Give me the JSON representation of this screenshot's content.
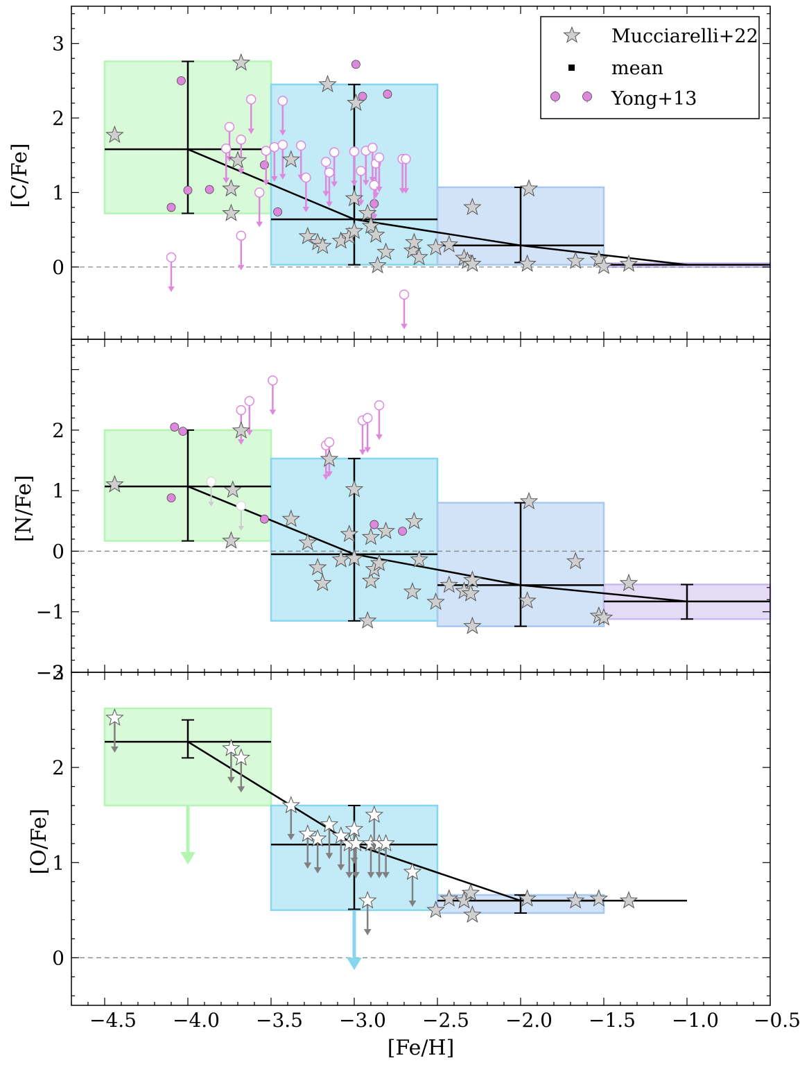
{
  "chart_data": {
    "type": "scatter",
    "xlabel": "[Fe/H]",
    "xlim": [
      -4.7,
      -0.5
    ],
    "xticks": [
      "−4.5",
      "−4.0",
      "−3.5",
      "−3.0",
      "−2.5",
      "−2.0",
      "−1.5",
      "−1.0",
      "−0.5"
    ],
    "xtick_values": [
      -4.5,
      -4.0,
      -3.5,
      -3.0,
      -2.5,
      -2.0,
      -1.5,
      -1.0,
      -0.5
    ],
    "legend": {
      "position": "top-right of top panel",
      "entries": [
        "Mucciarelli+22",
        "mean",
        "Yong+13"
      ]
    },
    "colors": {
      "bin1": "#b4f5b4",
      "bin2": "#87d6f0",
      "bin3": "#a8c8f0",
      "bin4": "#c9b8f0",
      "yong": "#dd88dd",
      "star_fill": "#cfcfcf",
      "star_stroke": "#555555",
      "arrow": "#808080"
    },
    "panels": [
      {
        "id": "C",
        "ylabel": "[C/Fe]",
        "ylim": [
          -0.97,
          3.5
        ],
        "yticks": [
          0,
          1,
          2,
          3
        ],
        "ytick_labels": [
          "0",
          "1",
          "2",
          "3"
        ],
        "bins": [
          {
            "x0": -4.5,
            "x1": -3.5,
            "y0": 0.72,
            "y1": 2.76,
            "color": "bin1"
          },
          {
            "x0": -3.5,
            "x1": -2.5,
            "y0": 0.03,
            "y1": 2.45,
            "color": "bin2"
          },
          {
            "x0": -2.5,
            "x1": -1.5,
            "y0": 0.03,
            "y1": 1.07,
            "color": "bin3"
          },
          {
            "x0": -1.5,
            "x1": -0.5,
            "y0": 0.0,
            "y1": 0.05,
            "color": "bin4"
          }
        ],
        "means": [
          {
            "x": -4.0,
            "y": 1.58,
            "xerr": 0.5,
            "ylo": 0.72,
            "yhi": 2.76
          },
          {
            "x": -3.0,
            "y": 0.64,
            "xerr": 0.5,
            "ylo": 0.03,
            "yhi": 2.45
          },
          {
            "x": -2.0,
            "y": 0.29,
            "xerr": 0.5,
            "ylo": 0.06,
            "yhi": 1.07
          },
          {
            "x": -1.0,
            "y": 0.03,
            "xerr": 0.5,
            "ylo": 0.03,
            "yhi": 0.03
          }
        ],
        "mucciarelli": [
          [
            -4.44,
            1.77,
            0
          ],
          [
            -3.68,
            2.74,
            0
          ],
          [
            -3.16,
            2.45,
            0
          ],
          [
            -2.99,
            2.2,
            0
          ],
          [
            -3.7,
            1.43,
            0
          ],
          [
            -3.74,
            1.05,
            0
          ],
          [
            -3.74,
            0.72,
            0
          ],
          [
            -3.38,
            1.44,
            0
          ],
          [
            -3.0,
            0.92,
            0
          ],
          [
            -3.28,
            0.41,
            0
          ],
          [
            -3.22,
            0.33,
            0
          ],
          [
            -3.19,
            0.28,
            0
          ],
          [
            -3.08,
            0.35,
            0
          ],
          [
            -3.03,
            0.41,
            0
          ],
          [
            -3.0,
            0.48,
            0
          ],
          [
            -2.92,
            0.72,
            0
          ],
          [
            -2.9,
            0.55,
            0
          ],
          [
            -2.87,
            0.43,
            0
          ],
          [
            -2.86,
            0.02,
            0
          ],
          [
            -2.81,
            0.2,
            0
          ],
          [
            -2.65,
            0.22,
            0
          ],
          [
            -2.64,
            0.33,
            0
          ],
          [
            -2.61,
            0.13,
            0
          ],
          [
            -2.51,
            0.26,
            0
          ],
          [
            -2.43,
            0.3,
            0
          ],
          [
            -2.34,
            0.12,
            0
          ],
          [
            -2.32,
            0.08,
            0
          ],
          [
            -2.29,
            0.04,
            0
          ],
          [
            -2.29,
            0.8,
            0
          ],
          [
            -1.95,
            1.05,
            0
          ],
          [
            -1.96,
            0.04,
            0
          ],
          [
            -1.67,
            0.08,
            0
          ],
          [
            -1.53,
            0.1,
            0
          ],
          [
            -1.5,
            0.01,
            0
          ],
          [
            -1.35,
            0.04,
            0
          ]
        ],
        "yong_detect": [
          [
            -4.04,
            2.5
          ],
          [
            -2.99,
            2.72
          ],
          [
            -2.95,
            2.29
          ],
          [
            -2.8,
            2.32
          ],
          [
            -3.54,
            1.37
          ],
          [
            -4.1,
            0.8
          ],
          [
            -4.0,
            1.03
          ],
          [
            -3.87,
            1.04
          ],
          [
            -3.46,
            0.74
          ],
          [
            -2.88,
            0.85
          ]
        ],
        "yong_upper": [
          [
            -4.1,
            0.13
          ],
          [
            -3.68,
            0.42
          ],
          [
            -3.75,
            1.88
          ],
          [
            -3.62,
            2.25
          ],
          [
            -3.43,
            2.23
          ],
          [
            -3.68,
            1.71
          ],
          [
            -3.77,
            1.59
          ],
          [
            -3.53,
            1.56
          ],
          [
            -3.57,
            1.0
          ],
          [
            -3.48,
            1.61
          ],
          [
            -3.43,
            1.64
          ],
          [
            -3.32,
            1.63
          ],
          [
            -3.29,
            1.2
          ],
          [
            -3.17,
            1.41
          ],
          [
            -3.15,
            1.27
          ],
          [
            -3.12,
            1.54
          ],
          [
            -3.0,
            1.55
          ],
          [
            -2.96,
            1.29
          ],
          [
            -2.93,
            1.56
          ],
          [
            -2.89,
            1.6
          ],
          [
            -2.87,
            1.39
          ],
          [
            -2.88,
            1.1
          ],
          [
            -2.85,
            1.47
          ],
          [
            -2.71,
            1.45
          ],
          [
            -2.69,
            1.45
          ],
          [
            -2.7,
            -0.37
          ]
        ]
      },
      {
        "id": "N",
        "ylabel": "[N/Fe]",
        "ylim": [
          -2.0,
          3.5
        ],
        "yticks": [
          -2,
          -1,
          0,
          1,
          2
        ],
        "ytick_labels": [
          "−2",
          "−1",
          "0",
          "1",
          "2"
        ],
        "bins": [
          {
            "x0": -4.5,
            "x1": -3.5,
            "y0": 0.17,
            "y1": 2.0,
            "color": "bin1"
          },
          {
            "x0": -3.5,
            "x1": -2.5,
            "y0": -1.15,
            "y1": 1.53,
            "color": "bin2"
          },
          {
            "x0": -2.5,
            "x1": -1.5,
            "y0": -1.24,
            "y1": 0.8,
            "color": "bin3"
          },
          {
            "x0": -1.5,
            "x1": -0.5,
            "y0": -1.12,
            "y1": -0.55,
            "color": "bin4"
          }
        ],
        "means": [
          {
            "x": -4.0,
            "y": 1.07,
            "xerr": 0.5,
            "ylo": 0.17,
            "yhi": 2.0
          },
          {
            "x": -3.0,
            "y": -0.05,
            "xerr": 0.5,
            "ylo": -1.15,
            "yhi": 1.53
          },
          {
            "x": -2.0,
            "y": -0.56,
            "xerr": 0.5,
            "ylo": -1.24,
            "yhi": 0.8
          },
          {
            "x": -1.0,
            "y": -0.83,
            "xerr": 0.5,
            "ylo": -1.12,
            "yhi": -0.55
          }
        ],
        "mucciarelli": [
          [
            -4.44,
            1.1,
            0
          ],
          [
            -3.68,
            1.99,
            0
          ],
          [
            -3.73,
            1.01,
            0
          ],
          [
            -3.74,
            0.17,
            0
          ],
          [
            -3.38,
            0.53,
            0
          ],
          [
            -3.28,
            0.14,
            0
          ],
          [
            -3.22,
            -0.27,
            0
          ],
          [
            -3.19,
            -0.53,
            0
          ],
          [
            -3.15,
            1.52,
            0
          ],
          [
            -3.08,
            -0.14,
            0
          ],
          [
            -3.03,
            0.28,
            0
          ],
          [
            -3.0,
            -0.12,
            0
          ],
          [
            -3.0,
            1.02,
            0
          ],
          [
            -2.92,
            -1.15,
            0
          ],
          [
            -2.9,
            0.23,
            0
          ],
          [
            -2.9,
            -0.49,
            0
          ],
          [
            -2.88,
            -0.3,
            0
          ],
          [
            -2.85,
            -0.2,
            0
          ],
          [
            -2.81,
            0.33,
            0
          ],
          [
            -2.65,
            -0.67,
            0
          ],
          [
            -2.64,
            0.49,
            0
          ],
          [
            -2.61,
            -0.14,
            0
          ],
          [
            -2.51,
            -0.84,
            0
          ],
          [
            -2.43,
            -0.56,
            0
          ],
          [
            -2.34,
            -0.66,
            0
          ],
          [
            -2.3,
            -0.7,
            0
          ],
          [
            -2.29,
            -0.48,
            0
          ],
          [
            -2.29,
            -1.24,
            0
          ],
          [
            -1.95,
            0.82,
            0
          ],
          [
            -1.96,
            -0.82,
            0
          ],
          [
            -1.67,
            -0.17,
            0
          ],
          [
            -1.53,
            -1.07,
            0
          ],
          [
            -1.5,
            -1.1,
            0
          ],
          [
            -1.35,
            -0.53,
            0
          ]
        ],
        "yong_detect": [
          [
            -4.08,
            2.05
          ],
          [
            -4.03,
            1.98
          ],
          [
            -4.1,
            0.88
          ],
          [
            -3.54,
            0.53
          ],
          [
            -2.88,
            0.44
          ],
          [
            -2.71,
            0.33
          ]
        ],
        "yong_upper": [
          [
            -3.49,
            2.82
          ],
          [
            -3.68,
            2.33
          ],
          [
            -3.63,
            2.48
          ],
          [
            -3.17,
            1.75
          ],
          [
            -3.15,
            1.8
          ],
          [
            -2.95,
            2.16
          ],
          [
            -2.92,
            2.2
          ],
          [
            -2.85,
            2.41
          ]
        ],
        "yong_upper_faded": [
          [
            -3.86,
            1.15
          ],
          [
            -3.68,
            0.75
          ]
        ]
      },
      {
        "id": "O",
        "ylabel": "[O/Fe]",
        "ylim": [
          -0.5,
          3.0
        ],
        "yticks": [
          0,
          1,
          2,
          3
        ],
        "ytick_labels": [
          "0",
          "1",
          "2",
          "3"
        ],
        "bins": [
          {
            "x0": -4.5,
            "x1": -3.5,
            "y0": 1.6,
            "y1": 2.62,
            "color": "bin1"
          },
          {
            "x0": -3.5,
            "x1": -2.5,
            "y0": 0.5,
            "y1": 1.6,
            "color": "bin2"
          },
          {
            "x0": -2.5,
            "x1": -1.5,
            "y0": 0.47,
            "y1": 0.66,
            "color": "bin3"
          }
        ],
        "means": [
          {
            "x": -4.0,
            "y": 2.27,
            "xerr": 0.5,
            "ylo": 2.1,
            "yhi": 2.5
          },
          {
            "x": -3.0,
            "y": 1.19,
            "xerr": 0.5,
            "ylo": 0.51,
            "yhi": 1.6
          },
          {
            "x": -2.0,
            "y": 0.6,
            "xerr": 0.5,
            "ylo": 0.47,
            "yhi": 0.66
          },
          {
            "x": -1.0,
            "y": 0.6,
            "xerr": 0,
            "ylo": 0.6,
            "yhi": 0.6
          }
        ],
        "bin_upper_arrows": [
          {
            "x": -4.0,
            "y_from": 1.6,
            "y_to": 0.98,
            "color": "bin1"
          },
          {
            "x": -3.0,
            "y_from": 0.5,
            "y_to": -0.13,
            "color": "bin2"
          }
        ],
        "mucciarelli": [
          [
            -4.44,
            2.52,
            1
          ],
          [
            -3.74,
            2.2,
            1
          ],
          [
            -3.68,
            2.1,
            1
          ],
          [
            -3.38,
            1.6,
            1
          ],
          [
            -3.28,
            1.3,
            1
          ],
          [
            -3.22,
            1.25,
            1
          ],
          [
            -3.15,
            1.4,
            1
          ],
          [
            -3.08,
            1.28,
            1
          ],
          [
            -3.03,
            1.2,
            1
          ],
          [
            -3.0,
            1.35,
            1
          ],
          [
            -2.99,
            1.2,
            1
          ],
          [
            -2.92,
            0.6,
            1
          ],
          [
            -2.9,
            1.2,
            1
          ],
          [
            -2.88,
            1.5,
            1
          ],
          [
            -2.85,
            1.2,
            1
          ],
          [
            -2.81,
            1.2,
            1
          ],
          [
            -2.65,
            0.9,
            1
          ],
          [
            -2.51,
            0.5,
            0
          ],
          [
            -2.43,
            0.62,
            0
          ],
          [
            -2.34,
            0.6,
            0
          ],
          [
            -2.3,
            0.68,
            0
          ],
          [
            -2.29,
            0.45,
            0
          ],
          [
            -1.96,
            0.62,
            0
          ],
          [
            -1.67,
            0.6,
            0
          ],
          [
            -1.53,
            0.62,
            0
          ],
          [
            -1.35,
            0.6,
            0
          ]
        ]
      }
    ]
  }
}
